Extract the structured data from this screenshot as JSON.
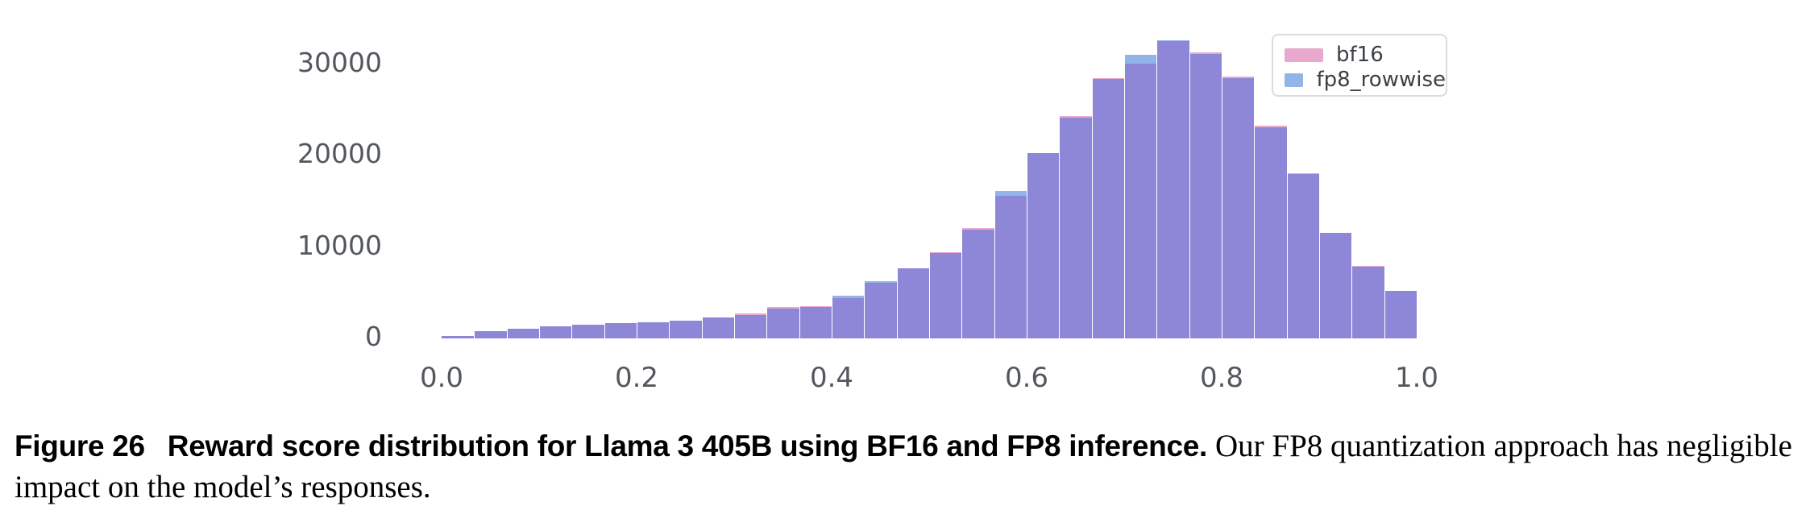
{
  "chart_data": {
    "type": "bar",
    "subtype": "overlaid-histogram",
    "title": "",
    "xlabel": "",
    "ylabel": "",
    "x_range": [
      0.0,
      1.0
    ],
    "ylim": [
      0,
      35000
    ],
    "bin_width": 0.0333,
    "bin_start": 0.0,
    "n_bins": 30,
    "grid": false,
    "x_tick_labels": [
      "0.0",
      "0.2",
      "0.4",
      "0.6",
      "0.8",
      "1.0"
    ],
    "x_tick_values": [
      0.0,
      0.2,
      0.4,
      0.6,
      0.8,
      1.0
    ],
    "y_tick_labels": [
      "0",
      "10000",
      "20000",
      "30000"
    ],
    "y_tick_values": [
      0,
      10000,
      20000,
      30000
    ],
    "series": [
      {
        "name": "bf16",
        "color": "#e9a8ce",
        "values": [
          300,
          790,
          1080,
          1320,
          1470,
          1650,
          1800,
          1950,
          2260,
          2750,
          3400,
          3550,
          4400,
          6100,
          7700,
          9450,
          12050,
          15600,
          20250,
          24300,
          28500,
          30050,
          32500,
          31300,
          28600,
          23250,
          18100,
          11550,
          7950,
          5200
        ]
      },
      {
        "name": "fp8_rowwise",
        "color": "#92b4e8",
        "values": [
          300,
          790,
          1080,
          1320,
          1470,
          1650,
          1800,
          1950,
          2260,
          2600,
          3250,
          3400,
          4700,
          6300,
          7700,
          9300,
          11900,
          16100,
          20250,
          24150,
          28350,
          31050,
          32600,
          31100,
          28450,
          23100,
          18000,
          11550,
          7850,
          5200
        ]
      }
    ],
    "overlap_color": "#8e87d8",
    "legend": {
      "position": "top-right",
      "entries": [
        "bf16",
        "fp8_rowwise"
      ]
    }
  },
  "caption": {
    "figure_label": "Figure 26",
    "bold_title": "Reward score distribution for Llama 3 405B using BF16 and FP8 inference.",
    "body_text": "Our FP8 quantization approach has negligible impact on the model’s responses."
  }
}
